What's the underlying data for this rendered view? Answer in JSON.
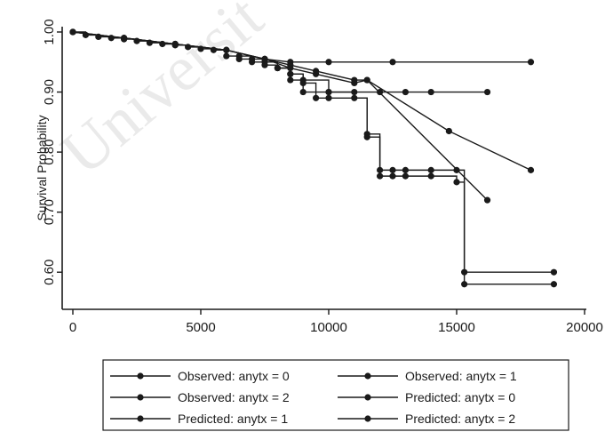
{
  "chart_data": {
    "type": "line",
    "title": "",
    "ylabel": "Survival Probability",
    "xlabel": "",
    "xlim": [
      0,
      20000
    ],
    "ylim": [
      0.55,
      1.0
    ],
    "x_ticks": [
      0,
      5000,
      10000,
      15000,
      20000
    ],
    "x_tick_labels": [
      "0",
      "5000",
      "10000",
      "15000",
      "20000"
    ],
    "y_ticks": [
      0.6,
      0.7,
      0.8,
      0.9,
      1.0
    ],
    "y_tick_labels": [
      "0.60",
      "0.70",
      "0.80",
      "0.90",
      "1.00"
    ],
    "grid": false,
    "legend_position": "bottom",
    "series": [
      {
        "name": "Observed: anytx = 0",
        "step": true,
        "x": [
          0,
          500,
          1000,
          1500,
          2000,
          2500,
          3000,
          3500,
          4000,
          4500,
          5000,
          5500,
          6000,
          6500,
          7000,
          7500,
          8000,
          8500,
          9000,
          9500,
          10000,
          11500,
          12000,
          12500,
          13000,
          14000,
          15000,
          15300,
          18800
        ],
        "y": [
          1.0,
          0.995,
          0.992,
          0.99,
          0.988,
          0.985,
          0.982,
          0.98,
          0.978,
          0.975,
          0.972,
          0.97,
          0.96,
          0.955,
          0.95,
          0.945,
          0.94,
          0.93,
          0.915,
          0.89,
          0.89,
          0.825,
          0.77,
          0.77,
          0.77,
          0.77,
          0.77,
          0.6,
          0.6
        ]
      },
      {
        "name": "Observed: anytx = 1",
        "step": true,
        "x": [
          8000,
          8500,
          9000,
          10000,
          11000,
          11500,
          12000,
          12500,
          13000,
          14000,
          15000,
          15300,
          18800
        ],
        "y": [
          0.94,
          0.93,
          0.92,
          0.9,
          0.89,
          0.83,
          0.76,
          0.76,
          0.76,
          0.76,
          0.75,
          0.58,
          0.58
        ]
      },
      {
        "name": "Observed: anytx = 2",
        "step": true,
        "x": [
          6500,
          7000,
          7500,
          8000,
          8500,
          9000,
          10000,
          11000,
          12000,
          13000,
          14000,
          16200
        ],
        "y": [
          0.96,
          0.955,
          0.95,
          0.94,
          0.92,
          0.9,
          0.9,
          0.9,
          0.9,
          0.9,
          0.9,
          0.9
        ]
      },
      {
        "name": "Predicted: anytx = 0",
        "step": false,
        "x": [
          0,
          2000,
          4000,
          6000,
          7500,
          8500,
          10000,
          12500,
          17900
        ],
        "y": [
          1.0,
          0.99,
          0.98,
          0.97,
          0.955,
          0.95,
          0.95,
          0.95,
          0.95
        ]
      },
      {
        "name": "Predicted: anytx = 1",
        "step": false,
        "x": [
          0,
          2000,
          4000,
          6000,
          7500,
          8500,
          9500,
          11000,
          11500,
          16200
        ],
        "y": [
          1.0,
          0.99,
          0.98,
          0.97,
          0.955,
          0.945,
          0.935,
          0.92,
          0.92,
          0.72
        ]
      },
      {
        "name": "Predicted: anytx = 2",
        "step": false,
        "x": [
          0,
          2000,
          4000,
          6000,
          7500,
          8500,
          9500,
          11000,
          11500,
          14700,
          17900
        ],
        "y": [
          1.0,
          0.99,
          0.98,
          0.97,
          0.955,
          0.94,
          0.93,
          0.915,
          0.92,
          0.835,
          0.77
        ]
      }
    ]
  },
  "colors": {
    "ink": "#1a1a1a",
    "background": "#ffffff",
    "watermark": "#d9d9d9"
  },
  "watermark_text": "Universit"
}
